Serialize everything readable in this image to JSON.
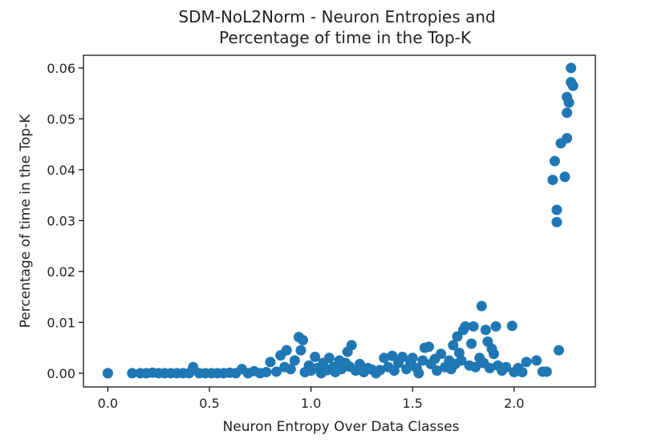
{
  "chart_data": {
    "type": "scatter",
    "title_line1": "SDM-NoL2Norm - Neuron Entropies and",
    "title_line2": "Percentage of time in the Top-K",
    "xlabel": "Neuron Entropy Over Data Classes",
    "ylabel": "Percentage of time in the Top-K",
    "xlim": [
      -0.12,
      2.4
    ],
    "ylim": [
      -0.0027,
      0.0625
    ],
    "x_ticks": [
      0.0,
      0.5,
      1.0,
      1.5,
      2.0
    ],
    "x_tick_labels": [
      "0.0",
      "0.5",
      "1.0",
      "1.5",
      "2.0"
    ],
    "y_ticks": [
      0.0,
      0.01,
      0.02,
      0.03,
      0.04,
      0.05,
      0.06
    ],
    "y_tick_labels": [
      "0.00",
      "0.01",
      "0.02",
      "0.03",
      "0.04",
      "0.05",
      "0.06"
    ],
    "grid": false,
    "marker_color": "#1f77b4",
    "points": [
      [
        0.0,
        0.0
      ],
      [
        0.0,
        0.0
      ],
      [
        0.12,
        0.0
      ],
      [
        0.16,
        0.0
      ],
      [
        0.19,
        0.0
      ],
      [
        0.22,
        0.0001
      ],
      [
        0.25,
        0.0
      ],
      [
        0.28,
        0.0
      ],
      [
        0.31,
        0.0
      ],
      [
        0.34,
        0.0
      ],
      [
        0.37,
        0.0
      ],
      [
        0.4,
        0.0
      ],
      [
        0.42,
        0.0012
      ],
      [
        0.45,
        0.0
      ],
      [
        0.48,
        0.0
      ],
      [
        0.51,
        0.0
      ],
      [
        0.54,
        0.0
      ],
      [
        0.57,
        0.0
      ],
      [
        0.6,
        0.0001
      ],
      [
        0.63,
        0.0
      ],
      [
        0.66,
        0.0008
      ],
      [
        0.69,
        0.0
      ],
      [
        0.72,
        0.0004
      ],
      [
        0.75,
        0.0
      ],
      [
        0.78,
        0.0002
      ],
      [
        0.8,
        0.0022
      ],
      [
        0.83,
        0.0003
      ],
      [
        0.85,
        0.0035
      ],
      [
        0.87,
        0.0012
      ],
      [
        0.88,
        0.0045
      ],
      [
        0.9,
        0.0008
      ],
      [
        0.92,
        0.0025
      ],
      [
        0.94,
        0.0071
      ],
      [
        0.95,
        0.0045
      ],
      [
        0.96,
        0.0065
      ],
      [
        0.97,
        0.0002
      ],
      [
        0.99,
        0.0015
      ],
      [
        1.0,
        0.0005
      ],
      [
        1.02,
        0.0032
      ],
      [
        1.03,
        0.001
      ],
      [
        1.05,
        0.0
      ],
      [
        1.06,
        0.002
      ],
      [
        1.08,
        0.0006
      ],
      [
        1.09,
        0.003
      ],
      [
        1.11,
        0.0012
      ],
      [
        1.12,
        0.0002
      ],
      [
        1.14,
        0.0025
      ],
      [
        1.15,
        0.0008
      ],
      [
        1.17,
        0.002
      ],
      [
        1.18,
        0.0042
      ],
      [
        1.19,
        0.0013
      ],
      [
        1.2,
        0.0055
      ],
      [
        1.22,
        0.0005
      ],
      [
        1.24,
        0.0018
      ],
      [
        1.26,
        0.0002
      ],
      [
        1.28,
        0.001
      ],
      [
        1.3,
        0.0007
      ],
      [
        1.32,
        0.0
      ],
      [
        1.34,
        0.0006
      ],
      [
        1.36,
        0.003
      ],
      [
        1.38,
        0.0012
      ],
      [
        1.4,
        0.0034
      ],
      [
        1.41,
        0.0005
      ],
      [
        1.43,
        0.002
      ],
      [
        1.45,
        0.0032
      ],
      [
        1.47,
        0.0008
      ],
      [
        1.49,
        0.0022
      ],
      [
        1.5,
        0.003
      ],
      [
        1.52,
        0.001
      ],
      [
        1.53,
        0.0
      ],
      [
        1.55,
        0.0025
      ],
      [
        1.56,
        0.005
      ],
      [
        1.58,
        0.0052
      ],
      [
        1.59,
        0.0018
      ],
      [
        1.61,
        0.0028
      ],
      [
        1.62,
        0.0005
      ],
      [
        1.64,
        0.0038
      ],
      [
        1.66,
        0.0012
      ],
      [
        1.68,
        0.0025
      ],
      [
        1.69,
        0.0008
      ],
      [
        1.7,
        0.0055
      ],
      [
        1.71,
        0.0018
      ],
      [
        1.72,
        0.0072
      ],
      [
        1.73,
        0.004
      ],
      [
        1.74,
        0.0025
      ],
      [
        1.75,
        0.0085
      ],
      [
        1.76,
        0.0092
      ],
      [
        1.78,
        0.0015
      ],
      [
        1.79,
        0.0058
      ],
      [
        1.8,
        0.0092
      ],
      [
        1.81,
        0.0012
      ],
      [
        1.83,
        0.003
      ],
      [
        1.84,
        0.0132
      ],
      [
        1.85,
        0.002
      ],
      [
        1.86,
        0.0085
      ],
      [
        1.87,
        0.0062
      ],
      [
        1.88,
        0.001
      ],
      [
        1.89,
        0.0048
      ],
      [
        1.9,
        0.0038
      ],
      [
        1.91,
        0.0092
      ],
      [
        1.92,
        0.0015
      ],
      [
        1.94,
        0.0005
      ],
      [
        1.96,
        0.0012
      ],
      [
        1.99,
        0.0093
      ],
      [
        2.0,
        0.0002
      ],
      [
        2.02,
        0.001
      ],
      [
        2.04,
        0.0002
      ],
      [
        2.06,
        0.0022
      ],
      [
        2.11,
        0.0025
      ],
      [
        2.14,
        0.0003
      ],
      [
        2.16,
        0.0003
      ],
      [
        2.19,
        0.038
      ],
      [
        2.2,
        0.0417
      ],
      [
        2.21,
        0.0321
      ],
      [
        2.21,
        0.0297
      ],
      [
        2.22,
        0.0045
      ],
      [
        2.23,
        0.0452
      ],
      [
        2.25,
        0.0386
      ],
      [
        2.26,
        0.0462
      ],
      [
        2.26,
        0.0512
      ],
      [
        2.26,
        0.0543
      ],
      [
        2.27,
        0.0532
      ],
      [
        2.28,
        0.0572
      ],
      [
        2.28,
        0.06
      ],
      [
        2.29,
        0.0565
      ]
    ]
  }
}
